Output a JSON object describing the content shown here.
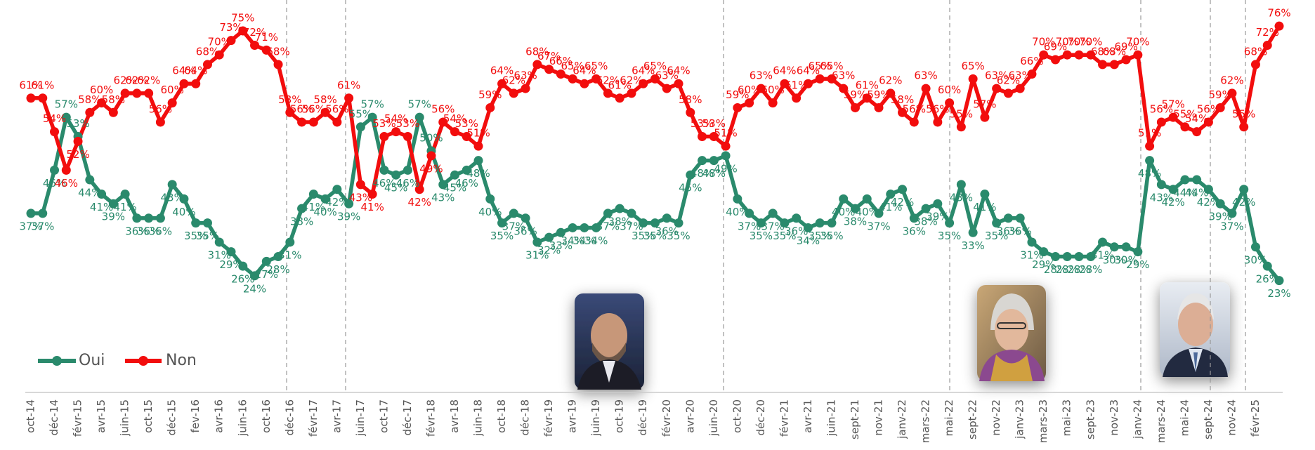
{
  "chart_data": {
    "type": "line",
    "categories": [
      "oct-14",
      null,
      "déc-14",
      null,
      "févr-15",
      null,
      "avr-15",
      null,
      "juin-15",
      null,
      "oct-15",
      null,
      "déc-15",
      null,
      "fev-16",
      null,
      "avr-16",
      null,
      "juin-16",
      null,
      "oct-16",
      null,
      "déc-16",
      null,
      "févr-17",
      null,
      "avr-17",
      null,
      "juin-17",
      null,
      "oct-17",
      null,
      "déc-17",
      null,
      "févr-18",
      null,
      "avr-18",
      null,
      "juin-18",
      null,
      "oct-18",
      null,
      "déc-18",
      null,
      "févr-19",
      null,
      "avr-19",
      null,
      "juin-19",
      null,
      "oct-19",
      null,
      "déc-19",
      null,
      "févr-20",
      null,
      "avr-20",
      null,
      "juin-20",
      null,
      "oct-20",
      null,
      "déc-20",
      null,
      "févr-21",
      null,
      "avr-21",
      null,
      "juin-21",
      null,
      "sept-21",
      null,
      "nov-21",
      null,
      "janv-22",
      null,
      "mars-22",
      null,
      "mai-22",
      null,
      "sept-22",
      null,
      "nov-22",
      null,
      "janv-23",
      null,
      "mars-23",
      null,
      "mai-23",
      null,
      "sept-23",
      null,
      "nov-23",
      null,
      "janv-24",
      null,
      "mars-24",
      null,
      "mai-24",
      null,
      "sept-24",
      null,
      "nov-24",
      null,
      "févr-25",
      null,
      null
    ],
    "series": [
      {
        "name": "Oui",
        "color": "#2a8a6c",
        "values": [
          37,
          37,
          46,
          57,
          53,
          44,
          41,
          39,
          41,
          36,
          36,
          36,
          43,
          40,
          35,
          35,
          31,
          29,
          26,
          24,
          27,
          28,
          31,
          38,
          41,
          40,
          42,
          39,
          55,
          57,
          46,
          45,
          46,
          57,
          50,
          43,
          45,
          46,
          48,
          40,
          35,
          37,
          36,
          31,
          32,
          33,
          34,
          34,
          34,
          37,
          38,
          37,
          35,
          35,
          36,
          35,
          45,
          48,
          48,
          49,
          40,
          37,
          35,
          37,
          35,
          36,
          34,
          35,
          35,
          40,
          38,
          40,
          37,
          41,
          42,
          36,
          38,
          39,
          35,
          43,
          33,
          41,
          35,
          36,
          36,
          31,
          29,
          28,
          28,
          28,
          28,
          31,
          30,
          30,
          29,
          48,
          43,
          42,
          44,
          44,
          42,
          39,
          37,
          42,
          30,
          26,
          23
        ],
        "value_labels": [
          "37%",
          "37%",
          "46%",
          "57%",
          "53%",
          "44%",
          "41%",
          "39%",
          "41%",
          "36%",
          "36%",
          "36%",
          "43%",
          "40%",
          "35%",
          "35%",
          "31%",
          "29%",
          "26%",
          "24%",
          "27%",
          "28%",
          "31%",
          "38%",
          "41%",
          "40%",
          "42%",
          "39%",
          "55%",
          "57%",
          "46%",
          "45%",
          "46%",
          "57%",
          "50%",
          "43%",
          "45%",
          "46%",
          "48%",
          "40%",
          "35%",
          "37%",
          "36%",
          "31%",
          "32%",
          "33%",
          "34%",
          "34%",
          "34%",
          "37%",
          "38%",
          "37%",
          "35%",
          "35%",
          "36%",
          "35%",
          "45%",
          "48%",
          "48%",
          "49%",
          "40%",
          "37%",
          "35%",
          "37%",
          "35%",
          "36%",
          "34%",
          "35%",
          "35%",
          "40%",
          "38%",
          "40%",
          "37%",
          "41%",
          "42%",
          "36%",
          "38%",
          "39%",
          "35%",
          "43%",
          "33%",
          "41%",
          "35%",
          "36%",
          "36%",
          "31%",
          "29%",
          "28%",
          "28%",
          "28%",
          "28%",
          "31%",
          "30%",
          "30%",
          "29%",
          "48%",
          "43%",
          "42%",
          "44%",
          "44%",
          "42%",
          "39%",
          "37%",
          "42%",
          "30%",
          "26%",
          "23%"
        ]
      },
      {
        "name": "Non",
        "color": "#f20d0d",
        "values": [
          61,
          61,
          54,
          46,
          52,
          58,
          60,
          58,
          62,
          62,
          62,
          56,
          60,
          64,
          64,
          68,
          70,
          73,
          75,
          72,
          71,
          68,
          58,
          56,
          56,
          58,
          56,
          61,
          43,
          41,
          53,
          54,
          53,
          42,
          49,
          56,
          54,
          53,
          51,
          59,
          64,
          62,
          63,
          68,
          67,
          66,
          65,
          64,
          65,
          62,
          61,
          62,
          64,
          65,
          63,
          64,
          58,
          53,
          53,
          51,
          59,
          60,
          63,
          60,
          64,
          61,
          64,
          65,
          65,
          63,
          59,
          61,
          59,
          62,
          58,
          56,
          63,
          56,
          60,
          55,
          65,
          57,
          63,
          62,
          63,
          66,
          70,
          69,
          70,
          70,
          70,
          68,
          68,
          69,
          70,
          51,
          56,
          57,
          55,
          54,
          56,
          59,
          62,
          55,
          68,
          72,
          76
        ],
        "value_labels": [
          "61%",
          "61%",
          "54%",
          "46%",
          "52%",
          "58%",
          "60%",
          "58%",
          "62%",
          "62%",
          "62%",
          "56%",
          "60%",
          "64%",
          "64%",
          "68%",
          "70%",
          "73%",
          "75%",
          "72%",
          "71%",
          "68%",
          "58%",
          "56%",
          "56%",
          "58%",
          "56%",
          "61%",
          "43%",
          "41%",
          "53%",
          "54%",
          "53%",
          "42%",
          "49%",
          "56%",
          "54%",
          "53%",
          "51%",
          "59%",
          "64%",
          "62%",
          "63%",
          "68%",
          "67%",
          "66%",
          "65%",
          "64%",
          "65%",
          "62%",
          "61%",
          "62%",
          "64%",
          "65%",
          "63%",
          "64%",
          "58%",
          "53%",
          "53%",
          "51%",
          "59%",
          "60%",
          "63%",
          "60%",
          "64%",
          "61%",
          "64%",
          "65%",
          "65%",
          "63%",
          "59%",
          "61%",
          "59%",
          "62%",
          "58%",
          "56%",
          "63%",
          "56%",
          "60%",
          "55%",
          "65%",
          "57%",
          "63%",
          "62%",
          "63%",
          "66%",
          "70%",
          "69%",
          "70%",
          "70%",
          "70%",
          "68%",
          "68%",
          "69%",
          "70%",
          "51%",
          "56%",
          "57%",
          "55%",
          "54%",
          "56%",
          "59%",
          "62%",
          "55%",
          "68%",
          "72%",
          "76%"
        ]
      }
    ],
    "legend": "lower left"
  }
}
